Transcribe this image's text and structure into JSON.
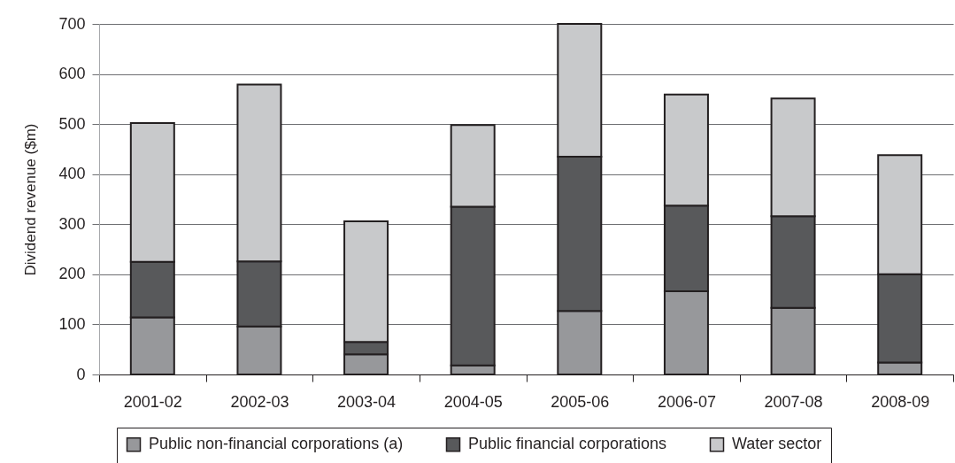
{
  "chart_data": {
    "type": "bar",
    "stacked": true,
    "ylabel": "Dividend revenue ($m)",
    "categories": [
      "2001-02",
      "2002-03",
      "2003-04",
      "2004-05",
      "2005-06",
      "2006-07",
      "2007-08",
      "2008-09"
    ],
    "series": [
      {
        "name": "Public non-financial corporations (a)",
        "color": "#97989b",
        "values": [
          114,
          96,
          40,
          18,
          127,
          166,
          133,
          24
        ]
      },
      {
        "name": "Public financial corporations",
        "color": "#58595b",
        "values": [
          111,
          130,
          25,
          317,
          308,
          171,
          183,
          176
        ]
      },
      {
        "name": "Water sector",
        "color": "#c8c9cb",
        "values": [
          277,
          353,
          241,
          163,
          265,
          222,
          235,
          238
        ]
      }
    ],
    "ylim": [
      0,
      700
    ],
    "yticks": [
      0,
      100,
      200,
      300,
      400,
      500,
      600,
      700
    ],
    "grid": "y",
    "legend": "bottom"
  }
}
